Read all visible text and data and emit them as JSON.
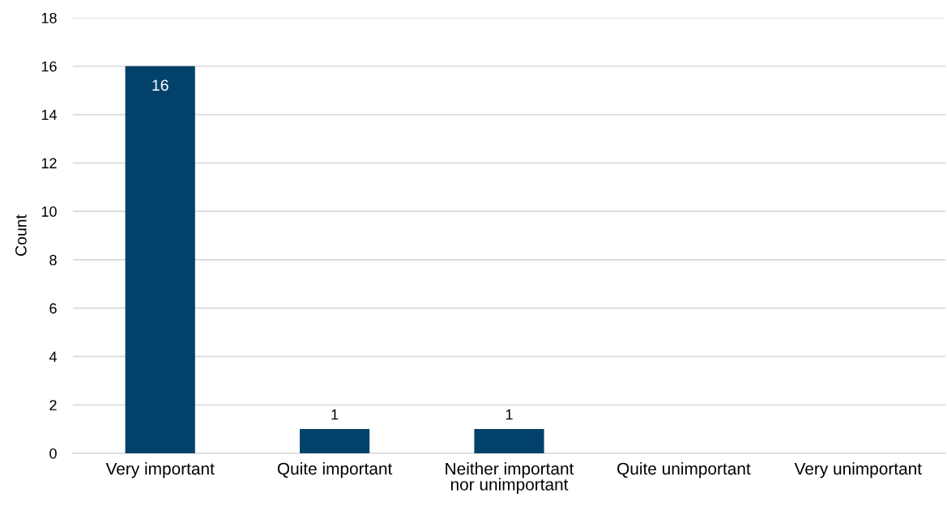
{
  "chart_data": {
    "type": "bar",
    "categories": [
      "Very important",
      "Quite important",
      "Neither important\nnor unimportant",
      "Quite unimportant",
      "Very unimportant"
    ],
    "values": [
      16,
      1,
      1,
      0,
      0
    ],
    "value_labels": [
      "16",
      "1",
      "1",
      null,
      null
    ],
    "color": "#02426a",
    "ylabel": "Count",
    "ylim": [
      0,
      18
    ],
    "yticks": [
      0,
      2,
      4,
      6,
      8,
      10,
      12,
      14,
      16,
      18
    ],
    "grid": "y",
    "legend": false
  }
}
